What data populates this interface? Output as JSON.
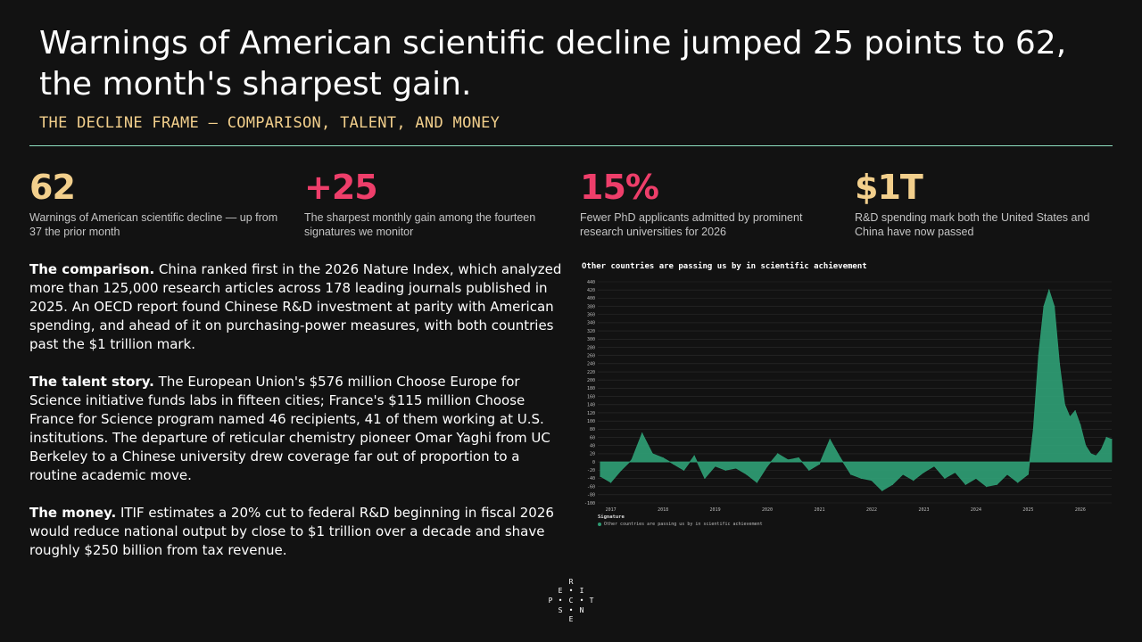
{
  "header": {
    "title": "Warnings of American scientific decline jumped 25 points to 62, the month's sharpest gain.",
    "subtitle": "THE DECLINE FRAME — COMPARISON, TALENT, AND MONEY"
  },
  "stats": [
    {
      "value": "62",
      "color": "#f2cf8c",
      "desc": "Warnings of American scientific decline — up from 37 the prior month"
    },
    {
      "value": "+25",
      "color": "#ee3e6a",
      "desc": "The sharpest monthly gain among the fourteen signatures we monitor"
    },
    {
      "value": "15%",
      "color": "#ee3e6a",
      "desc": "Fewer PhD applicants admitted by prominent research universities for 2026"
    },
    {
      "value": "$1T",
      "color": "#f2cf8c",
      "desc": "R&D spending mark both the United States and China have now passed"
    }
  ],
  "paragraphs": [
    {
      "lead": "The comparison.",
      "text": " China ranked first in the 2026 Nature Index, which analyzed more than 125,000 research articles across 178 leading journals published in 2025. An OECD report found Chinese R&D investment at parity with American spending, and ahead of it on purchasing-power measures, with both countries past the $1 trillion mark."
    },
    {
      "lead": "The talent story.",
      "text": " The European Union's $576 million Choose Europe for Science initiative funds labs in fifteen cities; France's $115 million Choose France for Science program named 46 recipients, 41 of them working at U.S. institutions. The departure of reticular chemistry pioneer Omar Yaghi from UC Berkeley to a Chinese university drew coverage far out of proportion to a routine academic move."
    },
    {
      "lead": "The money.",
      "text": " ITIF estimates a 20% cut to federal R&D beginning in fiscal 2026 would reduce national output by close to $1 trillion over a decade and shave roughly $250 billion from tax revenue."
    }
  ],
  "logo": {
    "letters": [
      "R",
      "E",
      "I",
      "P",
      "C",
      "T",
      "S",
      "N",
      "E"
    ]
  },
  "chart_data": {
    "type": "area",
    "title": "Other countries are passing us by in scientific achievement",
    "legend_title": "Signature",
    "series": [
      {
        "name": "Other countries are passing us by in scientific achievement",
        "color": "#2e9a72",
        "x": [
          2016.8,
          2017.0,
          2017.2,
          2017.4,
          2017.6,
          2017.8,
          2018.0,
          2018.2,
          2018.4,
          2018.6,
          2018.8,
          2019.0,
          2019.2,
          2019.4,
          2019.6,
          2019.8,
          2020.0,
          2020.2,
          2020.4,
          2020.6,
          2020.8,
          2021.0,
          2021.2,
          2021.4,
          2021.6,
          2021.8,
          2022.0,
          2022.2,
          2022.4,
          2022.6,
          2022.8,
          2023.0,
          2023.2,
          2023.4,
          2023.6,
          2023.8,
          2024.0,
          2024.2,
          2024.4,
          2024.6,
          2024.8,
          2025.0,
          2025.1,
          2025.2,
          2025.3,
          2025.4,
          2025.5,
          2025.6,
          2025.7,
          2025.8,
          2025.9,
          2026.0,
          2026.1,
          2026.2,
          2026.3,
          2026.4,
          2026.5,
          2026.6
        ],
        "values": [
          -35,
          -50,
          -20,
          5,
          70,
          20,
          10,
          -5,
          -20,
          15,
          -40,
          -10,
          -20,
          -15,
          -30,
          -50,
          -10,
          20,
          5,
          10,
          -20,
          -5,
          55,
          10,
          -30,
          -40,
          -45,
          -70,
          -55,
          -30,
          -45,
          -25,
          -10,
          -40,
          -25,
          -55,
          -40,
          -60,
          -55,
          -30,
          -50,
          -30,
          80,
          260,
          380,
          420,
          380,
          240,
          140,
          110,
          125,
          90,
          40,
          20,
          15,
          30,
          60,
          55
        ],
        "values_note": ""
      }
    ],
    "x_ticks": [
      "2017",
      "2018",
      "2019",
      "2020",
      "2021",
      "2022",
      "2023",
      "2024",
      "2025",
      "2026"
    ],
    "x_tick_values": [
      2017,
      2018,
      2019,
      2020,
      2021,
      2022,
      2023,
      2024,
      2025,
      2026
    ],
    "xlim": [
      2016.75,
      2026.6
    ],
    "ylim": [
      -100,
      440
    ],
    "y_ticks": [
      -100,
      -80,
      -60,
      -40,
      -20,
      0,
      20,
      40,
      60,
      80,
      100,
      120,
      140,
      160,
      180,
      200,
      220,
      240,
      260,
      280,
      300,
      320,
      340,
      360,
      380,
      400,
      420,
      440
    ],
    "grid": true,
    "legend_position": "bottom-left"
  }
}
